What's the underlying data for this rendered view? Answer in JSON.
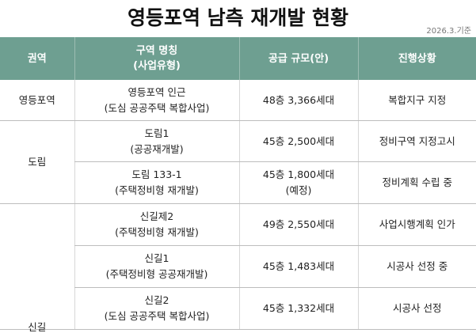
{
  "title": "영등포역 남측 재개발 현황",
  "date": "2026.3.기준",
  "headers": {
    "region": "권역",
    "name_line1": "구역 명칭",
    "name_line2": "(사업유형)",
    "supply": "공급 규모(안)",
    "status": "진행상황"
  },
  "groups": [
    {
      "region": "영등포역",
      "rows": [
        {
          "name": "영등포역 인근",
          "type": "(도심 공공주택 복합사업)",
          "supply": "48층 3,366세대",
          "supply_note": "",
          "status": "복합지구 지정"
        }
      ]
    },
    {
      "region": "도림",
      "rows": [
        {
          "name": "도림1",
          "type": "(공공재개발)",
          "supply": "45층 2,500세대",
          "supply_note": "",
          "status": "정비구역 지정고시"
        },
        {
          "name": "도림 133-1",
          "type": "(주택정비형 재개발)",
          "supply": "45층 1,800세대",
          "supply_note": "(예정)",
          "status": "정비계획 수립 중"
        }
      ]
    },
    {
      "region": "신길",
      "rows": [
        {
          "name": "신길제2",
          "type": "(주택정비형 재개발)",
          "supply": "49층 2,550세대",
          "supply_note": "",
          "status": "사업시행계획 인가"
        },
        {
          "name": "신길1",
          "type": "(주택정비형 공공재개발)",
          "supply": "45층 1,483세대",
          "supply_note": "",
          "status": "시공사 선정 중"
        },
        {
          "name": "신길2",
          "type": "(도심 공공주택 복합사업)",
          "supply": "45층 1,332세대",
          "supply_note": "",
          "status": "시공사 선정"
        }
      ]
    }
  ]
}
